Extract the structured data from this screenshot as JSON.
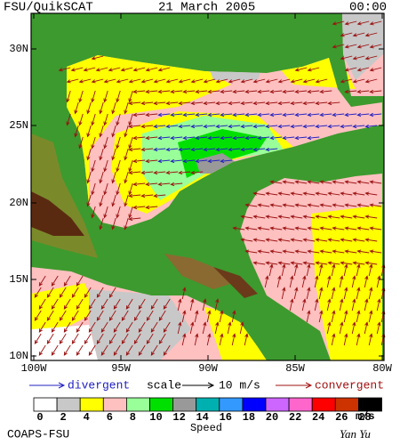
{
  "header": {
    "title": "FSU/QuikSCAT",
    "date": "21 March 2005",
    "time": "00:00"
  },
  "map": {
    "lat_labels": [
      "30N",
      "25N",
      "20N",
      "15N",
      "10N"
    ],
    "lon_labels": [
      "100W",
      "95W",
      "90W",
      "85W",
      "80W"
    ]
  },
  "legend": {
    "divergent": "divergent",
    "scale": "scale",
    "scale_value": "10 m/s",
    "convergent": "convergent"
  },
  "colorbar": {
    "labels": [
      "0",
      "2",
      "4",
      "6",
      "8",
      "10",
      "12",
      "14",
      "16",
      "18",
      "20",
      "22",
      "24",
      "26",
      "28"
    ],
    "colors": [
      "#ffffff",
      "#c8c8c8",
      "#ffff00",
      "#ffc0c0",
      "#99ff99",
      "#00e000",
      "#999999",
      "#00b0b0",
      "#3399ff",
      "#0000ff",
      "#cc66ff",
      "#ff66cc",
      "#ff0000",
      "#cc3300",
      "#000000"
    ],
    "unit": "m/s",
    "title": "Speed"
  },
  "footer": {
    "credit": "COAPS-FSU",
    "author": "Yan Yu"
  }
}
